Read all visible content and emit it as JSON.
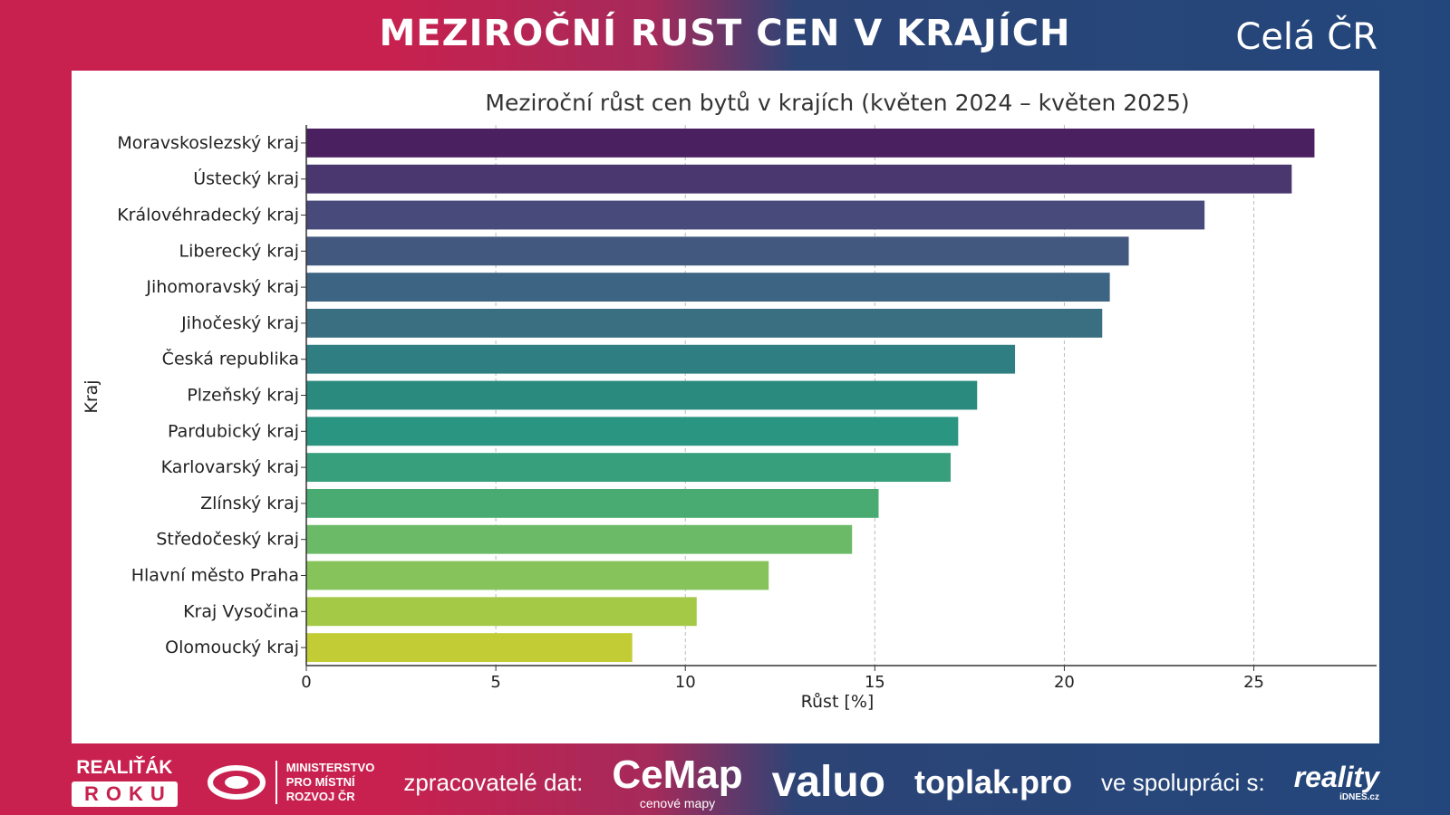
{
  "header": {
    "title": "MEZIROČNÍ RUST CEN V KRAJÍCH",
    "region": "Celá ČR"
  },
  "footer": {
    "realitak": "REALIŤÁK",
    "roku": "ROKU",
    "ministry": [
      "MINISTERSTVO",
      "PRO MÍSTNÍ",
      "ROZVOJ ČR"
    ],
    "processors_label": "zpracovatelé dat:",
    "cemap": "CeMap",
    "cemap_sub": "cenové mapy",
    "valuo": "valuo",
    "toplak": "toplak.pro",
    "cooperation_label": "ve spolupráci s:",
    "reality": "reality",
    "idnes": "iDNES.cz"
  },
  "chart_data": {
    "type": "bar",
    "orientation": "horizontal",
    "title": "Meziroční růst cen bytů v krajích (květen 2024 – květen 2025)",
    "xlabel": "Růst [%]",
    "ylabel": "Kraj",
    "xlim": [
      0,
      28
    ],
    "xticks": [
      0,
      5,
      10,
      15,
      20,
      25
    ],
    "grid": "x dashed",
    "categories": [
      "Moravskoslezský kraj",
      "Ústecký kraj",
      "Královéhradecký kraj",
      "Liberecký kraj",
      "Jihomoravský kraj",
      "Jihočeský kraj",
      "Česká republika",
      "Plzeňský kraj",
      "Pardubický kraj",
      "Karlovarský kraj",
      "Zlínský kraj",
      "Středočeský kraj",
      "Hlavní město Praha",
      "Kraj Vysočina",
      "Olomoucký kraj"
    ],
    "values": [
      26.6,
      26.0,
      23.7,
      21.7,
      21.2,
      21.0,
      18.7,
      17.7,
      17.2,
      17.0,
      15.1,
      14.4,
      12.2,
      10.3,
      8.6
    ],
    "colors": [
      "#4a2060",
      "#4a376f",
      "#484a7c",
      "#43587e",
      "#3d6483",
      "#396f80",
      "#2f7f82",
      "#2a8a7e",
      "#2a9581",
      "#389f7c",
      "#4aab72",
      "#6bba68",
      "#86c35b",
      "#a4c947",
      "#c2cc34"
    ]
  }
}
